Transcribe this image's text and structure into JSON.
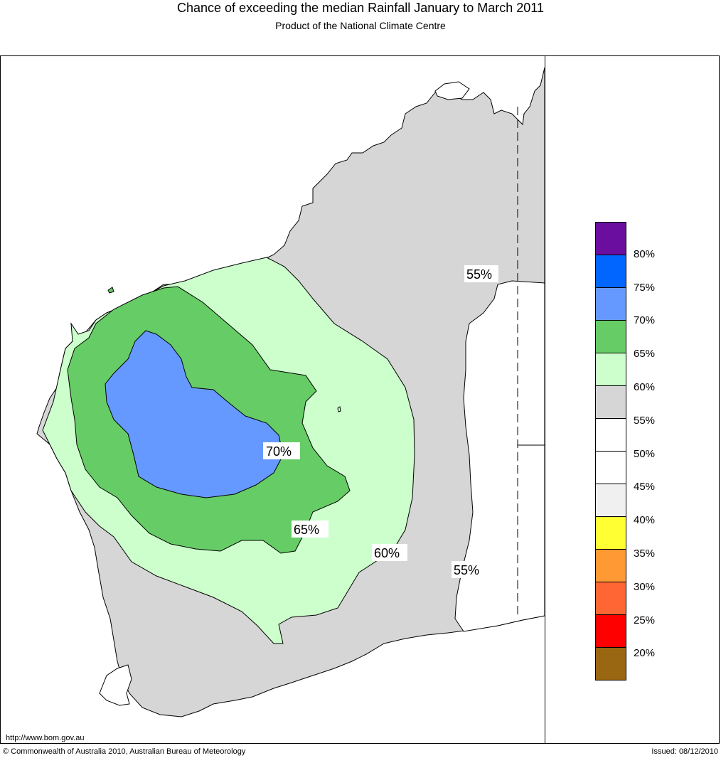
{
  "header": {
    "title": "Chance of exceeding the median Rainfall January to March 2011",
    "subtitle": "Product of the National Climate Centre"
  },
  "map": {
    "region": "Western Australia",
    "contour_labels": [
      "55%",
      "70%",
      "65%",
      "60%",
      "55%"
    ]
  },
  "legend": {
    "ticks": [
      "80%",
      "75%",
      "70%",
      "65%",
      "60%",
      "55%",
      "50%",
      "45%",
      "40%",
      "35%",
      "30%",
      "25%",
      "20%"
    ],
    "colors": [
      "#6a0ea0",
      "#0066ff",
      "#6699ff",
      "#66cc66",
      "#ccffcc",
      "#d6d6d6",
      "#ffffff",
      "#ffffff",
      "#f0f0f0",
      "#ffff33",
      "#ff9933",
      "#ff6633",
      "#ff0000",
      "#996611"
    ]
  },
  "footer": {
    "url": "http://www.bom.gov.au",
    "copyright": "© Commonwealth of Australia 2010, Australian Bureau of Meteorology",
    "issued": "Issued: 08/12/2010"
  }
}
